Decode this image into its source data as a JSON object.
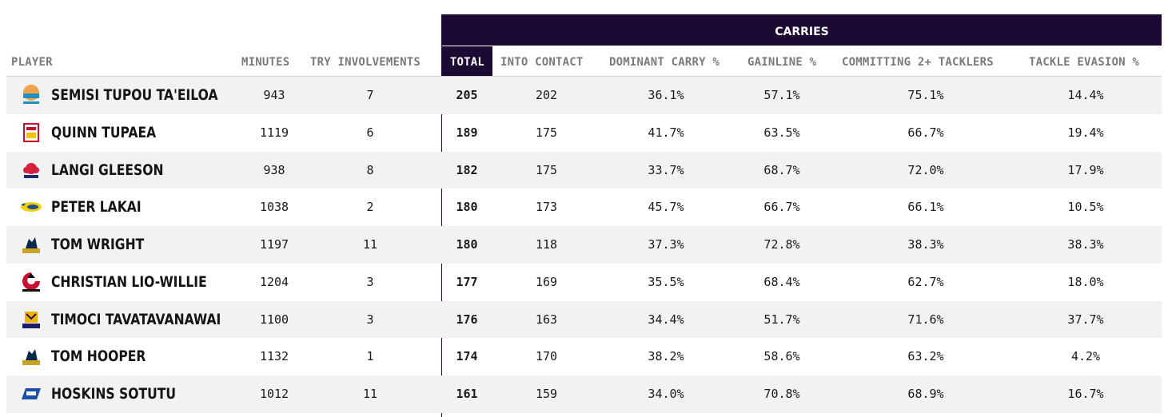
{
  "table": {
    "group_header": "CARRIES",
    "headers": {
      "player": "PLAYER",
      "minutes": "MINUTES",
      "try_involvements": "TRY INVOLVEMENTS",
      "total": "TOTAL",
      "into_contact": "INTO CONTACT",
      "dominant_carry": "DOMINANT CARRY %",
      "gainline": "GAINLINE %",
      "committing": "COMMITTING 2+ TACKLERS",
      "tackle_evasion": "TACKLE EVASION %"
    },
    "rows": [
      {
        "player": "SEMISI TUPOU TA'EILOA",
        "team_logo": "moana-pasifika-logo",
        "minutes": "943",
        "try_involvements": "7",
        "total": "205",
        "into_contact": "202",
        "dominant_carry": "36.1%",
        "gainline": "57.1%",
        "committing": "75.1%",
        "tackle_evasion": "14.4%"
      },
      {
        "player": "QUINN TUPAEA",
        "team_logo": "chiefs-logo",
        "minutes": "1119",
        "try_involvements": "6",
        "total": "189",
        "into_contact": "175",
        "dominant_carry": "41.7%",
        "gainline": "63.5%",
        "committing": "66.7%",
        "tackle_evasion": "19.4%"
      },
      {
        "player": "LANGI GLEESON",
        "team_logo": "waratahs-logo",
        "minutes": "938",
        "try_involvements": "8",
        "total": "182",
        "into_contact": "175",
        "dominant_carry": "33.7%",
        "gainline": "68.7%",
        "committing": "72.0%",
        "tackle_evasion": "17.9%"
      },
      {
        "player": "PETER LAKAI",
        "team_logo": "hurricanes-logo",
        "minutes": "1038",
        "try_involvements": "2",
        "total": "180",
        "into_contact": "173",
        "dominant_carry": "45.7%",
        "gainline": "66.7%",
        "committing": "66.1%",
        "tackle_evasion": "10.5%"
      },
      {
        "player": "TOM WRIGHT",
        "team_logo": "brumbies-logo",
        "minutes": "1197",
        "try_involvements": "11",
        "total": "180",
        "into_contact": "118",
        "dominant_carry": "37.3%",
        "gainline": "72.8%",
        "committing": "38.3%",
        "tackle_evasion": "38.3%"
      },
      {
        "player": "CHRISTIAN LIO-WILLIE",
        "team_logo": "crusaders-logo",
        "minutes": "1204",
        "try_involvements": "3",
        "total": "177",
        "into_contact": "169",
        "dominant_carry": "35.5%",
        "gainline": "68.4%",
        "committing": "62.7%",
        "tackle_evasion": "18.0%"
      },
      {
        "player": "TIMOCI TAVATAVANAWAI",
        "team_logo": "highlanders-logo",
        "minutes": "1100",
        "try_involvements": "3",
        "total": "176",
        "into_contact": "163",
        "dominant_carry": "34.4%",
        "gainline": "51.7%",
        "committing": "71.6%",
        "tackle_evasion": "37.7%"
      },
      {
        "player": "TOM HOOPER",
        "team_logo": "brumbies-logo",
        "minutes": "1132",
        "try_involvements": "1",
        "total": "174",
        "into_contact": "170",
        "dominant_carry": "38.2%",
        "gainline": "58.6%",
        "committing": "63.2%",
        "tackle_evasion": "4.2%"
      },
      {
        "player": "HOSKINS SOTUTU",
        "team_logo": "blues-logo",
        "minutes": "1012",
        "try_involvements": "11",
        "total": "161",
        "into_contact": "159",
        "dominant_carry": "34.0%",
        "gainline": "70.8%",
        "committing": "68.9%",
        "tackle_evasion": "16.7%"
      }
    ]
  },
  "colors": {
    "header_dark": "#1c0a33",
    "row_alt": "#f2f2f2",
    "header_text": "#7a7a7a"
  }
}
